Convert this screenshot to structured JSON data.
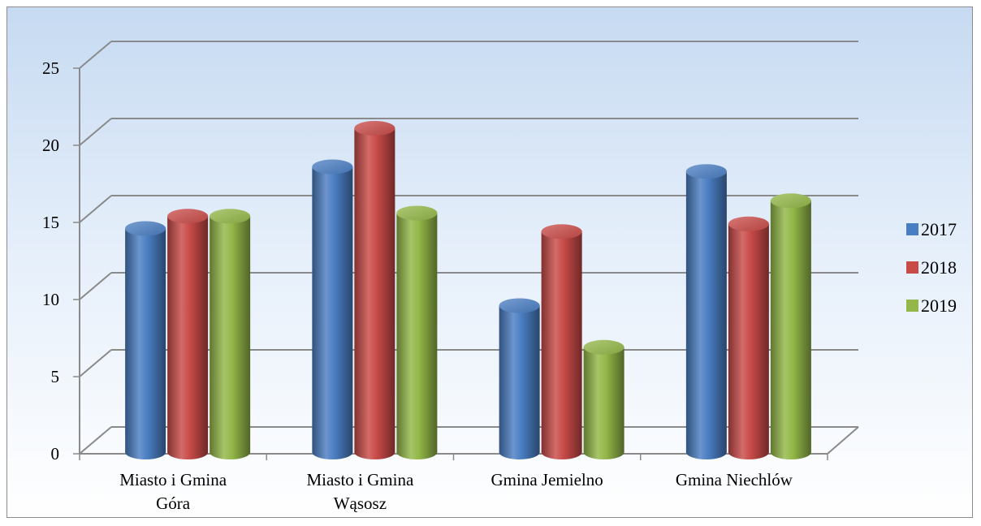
{
  "chart_data": {
    "type": "bar",
    "style": "3d-cylinder",
    "categories": [
      [
        "Miasto i Gmina",
        "Góra"
      ],
      [
        "Miasto i Gmina",
        "Wąsosz"
      ],
      [
        "Gmina Jemielno"
      ],
      [
        "Gmina Niechlów"
      ]
    ],
    "series": [
      {
        "name": "2017",
        "color": "#4a7ec2",
        "values": [
          14.5,
          18.5,
          9.5,
          18.2
        ]
      },
      {
        "name": "2018",
        "color": "#c84b48",
        "values": [
          15.3,
          21.0,
          14.3,
          14.8
        ]
      },
      {
        "name": "2019",
        "color": "#93b748",
        "values": [
          15.3,
          15.5,
          6.8,
          16.3
        ]
      }
    ],
    "y_ticks": [
      "0",
      "5",
      "10",
      "15",
      "20",
      "25"
    ],
    "ylim": [
      0,
      25
    ],
    "grid": true,
    "legend_position": "right"
  }
}
